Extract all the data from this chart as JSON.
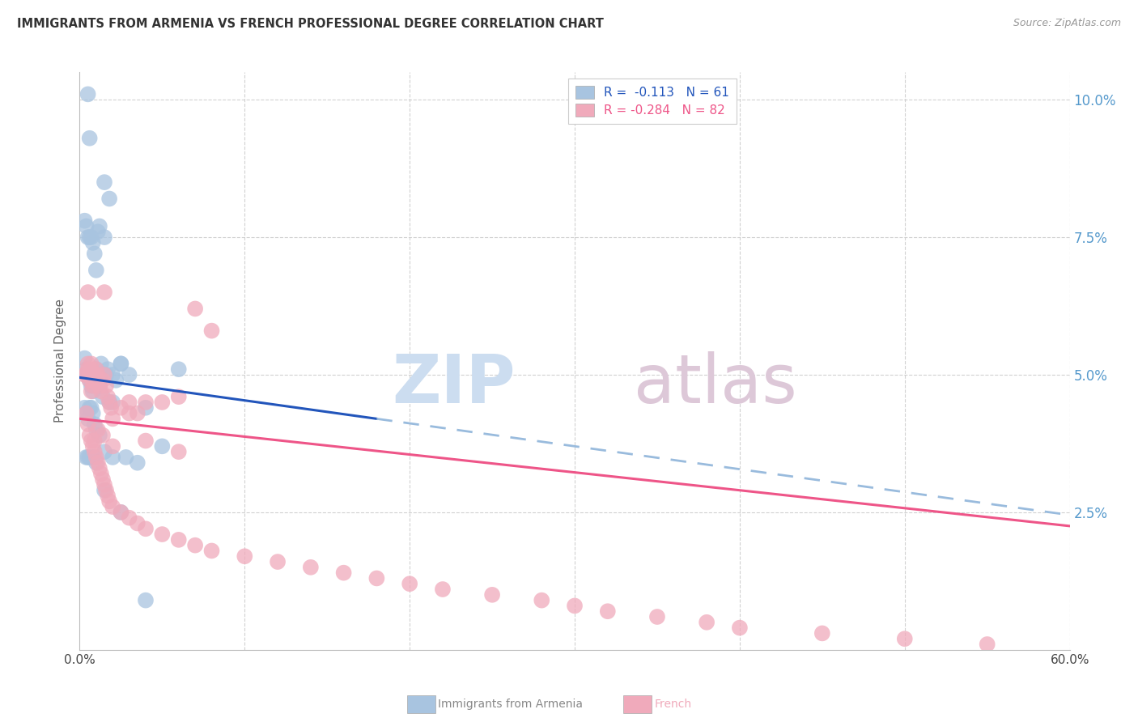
{
  "title": "IMMIGRANTS FROM ARMENIA VS FRENCH PROFESSIONAL DEGREE CORRELATION CHART",
  "source": "Source: ZipAtlas.com",
  "ylabel": "Professional Degree",
  "ytick_vals": [
    2.5,
    5.0,
    7.5,
    10.0
  ],
  "ytick_labels": [
    "2.5%",
    "5.0%",
    "7.5%",
    "10.0%"
  ],
  "xtick_labels": [
    "0.0%",
    "60.0%"
  ],
  "legend_line1": "R =  -0.113   N = 61",
  "legend_line2": "R = -0.284   N = 82",
  "blue_bubble_color": "#a8c4e0",
  "pink_bubble_color": "#f0aabb",
  "blue_line_color": "#2255bb",
  "pink_line_color": "#ee5588",
  "dashed_line_color": "#99bbdd",
  "background_color": "#ffffff",
  "grid_color": "#cccccc",
  "title_color": "#333333",
  "right_axis_color": "#5599cc",
  "watermark_zip_color": "#ccddf0",
  "watermark_atlas_color": "#ddc8d8",
  "bottom_legend_blue_color": "#a8c4e0",
  "bottom_legend_pink_color": "#f0aabb",
  "bottom_legend_blue_text": "#888888",
  "bottom_legend_pink_text": "#ee88aa",
  "xmin": 0.0,
  "xmax": 60.0,
  "ymin": 0.0,
  "ymax": 10.5,
  "blue_solid_x_end": 18.0,
  "blue_dash_x_end": 60.0,
  "blue_line_y0": 4.95,
  "blue_line_y60": 2.45,
  "pink_line_y0": 4.2,
  "pink_line_y60": 2.25,
  "blue_points_x": [
    0.5,
    0.6,
    1.5,
    1.8,
    0.3,
    0.4,
    0.5,
    0.6,
    0.7,
    0.8,
    0.9,
    1.0,
    1.1,
    1.2,
    1.3,
    1.5,
    1.7,
    2.0,
    2.2,
    2.5,
    0.3,
    0.4,
    0.5,
    0.5,
    0.6,
    0.7,
    0.8,
    0.9,
    1.0,
    1.1,
    1.2,
    1.4,
    1.6,
    1.8,
    2.0,
    2.5,
    3.0,
    4.0,
    6.0,
    0.3,
    0.4,
    0.5,
    0.6,
    0.7,
    0.8,
    0.9,
    1.0,
    1.2,
    1.5,
    2.0,
    2.8,
    3.5,
    5.0,
    0.4,
    0.5,
    0.6,
    0.8,
    1.0,
    1.5,
    2.5,
    4.0
  ],
  "blue_points_y": [
    10.1,
    9.3,
    8.5,
    8.2,
    7.8,
    7.7,
    7.5,
    7.5,
    7.5,
    7.4,
    7.2,
    6.9,
    7.6,
    7.7,
    5.2,
    7.5,
    5.1,
    5.0,
    4.9,
    5.2,
    5.3,
    5.1,
    5.0,
    5.0,
    4.9,
    4.8,
    4.7,
    5.0,
    5.1,
    5.0,
    4.8,
    4.6,
    5.0,
    4.5,
    4.5,
    5.2,
    5.0,
    4.4,
    5.1,
    4.4,
    4.3,
    4.2,
    4.4,
    4.4,
    4.3,
    4.1,
    4.0,
    3.9,
    3.6,
    3.5,
    3.5,
    3.4,
    3.7,
    3.5,
    3.5,
    3.5,
    3.5,
    3.4,
    2.9,
    2.5,
    0.9
  ],
  "pink_points_x": [
    0.3,
    0.4,
    0.5,
    0.5,
    0.6,
    0.6,
    0.7,
    0.7,
    0.8,
    0.8,
    0.9,
    1.0,
    1.0,
    1.1,
    1.2,
    1.3,
    1.4,
    1.5,
    1.5,
    1.6,
    1.7,
    1.8,
    1.9,
    2.0,
    2.5,
    3.0,
    3.5,
    4.0,
    5.0,
    6.0,
    7.0,
    8.0,
    0.4,
    0.5,
    0.6,
    0.7,
    0.8,
    0.9,
    1.0,
    1.1,
    1.2,
    1.3,
    1.4,
    1.5,
    1.6,
    1.7,
    1.8,
    2.0,
    2.5,
    3.0,
    3.5,
    4.0,
    5.0,
    6.0,
    7.0,
    8.0,
    10.0,
    12.0,
    14.0,
    16.0,
    18.0,
    20.0,
    22.0,
    25.0,
    28.0,
    30.0,
    32.0,
    35.0,
    38.0,
    40.0,
    45.0,
    50.0,
    55.0,
    0.5,
    0.7,
    0.9,
    1.1,
    1.4,
    2.0,
    3.0,
    4.0,
    6.0
  ],
  "pink_points_y": [
    5.0,
    5.0,
    5.1,
    5.2,
    5.0,
    4.9,
    5.1,
    5.2,
    4.9,
    4.8,
    5.0,
    5.1,
    4.9,
    5.0,
    4.8,
    4.7,
    4.9,
    6.5,
    5.0,
    4.8,
    4.6,
    4.5,
    4.4,
    4.2,
    4.4,
    4.5,
    4.3,
    3.8,
    4.5,
    4.6,
    6.2,
    5.8,
    4.3,
    4.1,
    3.9,
    3.8,
    3.7,
    3.6,
    3.5,
    3.4,
    3.3,
    3.2,
    3.1,
    3.0,
    2.9,
    2.8,
    2.7,
    2.6,
    2.5,
    2.4,
    2.3,
    2.2,
    2.1,
    2.0,
    1.9,
    1.8,
    1.7,
    1.6,
    1.5,
    1.4,
    1.3,
    1.2,
    1.1,
    1.0,
    0.9,
    0.8,
    0.7,
    0.6,
    0.5,
    0.4,
    0.3,
    0.2,
    0.1,
    6.5,
    4.7,
    3.8,
    4.0,
    3.9,
    3.7,
    4.3,
    4.5,
    3.6
  ]
}
